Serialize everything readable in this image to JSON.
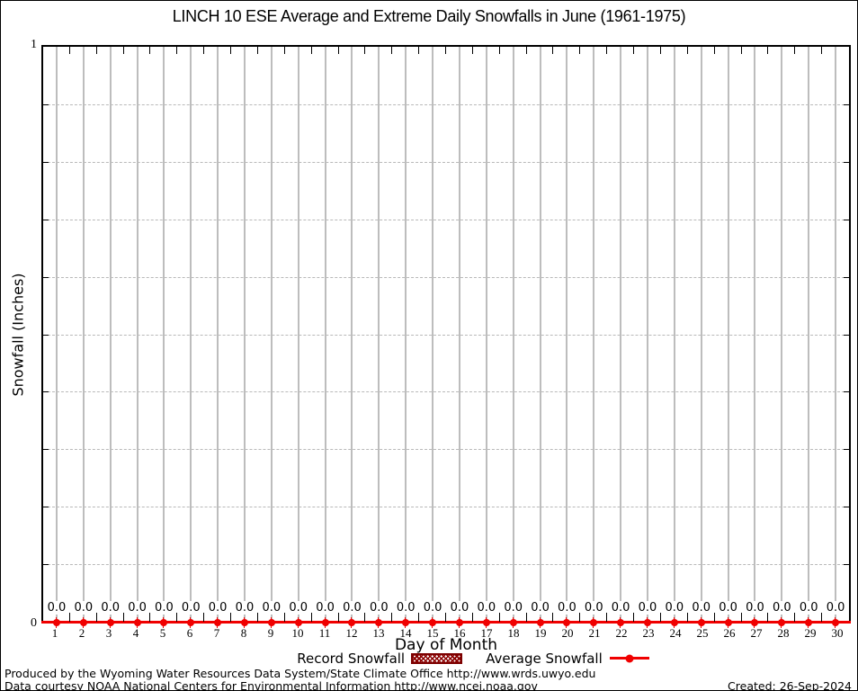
{
  "legend": {
    "record_label": "Record Snowfall",
    "average_label": "Average Snowfall",
    "position": "bottom"
  },
  "footer": {
    "line1": "Produced by the Wyoming Water Resources Data System/State Climate Office http://www.wrds.uwyo.edu",
    "line2": "Data courtesy NOAA National Centers for Environmental Information http://www.ncei.noaa.gov",
    "created": "Created: 26-Sep-2024"
  },
  "colors": {
    "average_line_red": "#f00000",
    "record_dark_red": "#8b0000",
    "vertical_grid_gray": "#bdbdbd",
    "dotted_grid_gray": "#b9b9b9",
    "border_black": "#000000"
  },
  "chart_data": {
    "type": "line",
    "title": "LINCH 10 ESE Average and Extreme Daily Snowfalls in June (1961-1975)",
    "xlabel": "Day of Month",
    "ylabel": "Snowfall (Inches)",
    "x": [
      1,
      2,
      3,
      4,
      5,
      6,
      7,
      8,
      9,
      10,
      11,
      12,
      13,
      14,
      15,
      16,
      17,
      18,
      19,
      20,
      21,
      22,
      23,
      24,
      25,
      26,
      27,
      28,
      29,
      30
    ],
    "x_tick_labels": [
      "1",
      "2",
      "3",
      "4",
      "5",
      "6",
      "7",
      "8",
      "9",
      "10",
      "11",
      "12",
      "13",
      "14",
      "15",
      "16",
      "17",
      "18",
      "19",
      "20",
      "21",
      "22",
      "23",
      "24",
      "25",
      "26",
      "27",
      "28",
      "29",
      "30"
    ],
    "y_tick_labels": [
      "0",
      "1"
    ],
    "series": [
      {
        "name": "Record Snowfall",
        "style": "bar-hatched",
        "values": [
          0.0,
          0.0,
          0.0,
          0.0,
          0.0,
          0.0,
          0.0,
          0.0,
          0.0,
          0.0,
          0.0,
          0.0,
          0.0,
          0.0,
          0.0,
          0.0,
          0.0,
          0.0,
          0.0,
          0.0,
          0.0,
          0.0,
          0.0,
          0.0,
          0.0,
          0.0,
          0.0,
          0.0,
          0.0,
          0.0
        ]
      },
      {
        "name": "Average Snowfall",
        "style": "line-with-points",
        "values": [
          0.0,
          0.0,
          0.0,
          0.0,
          0.0,
          0.0,
          0.0,
          0.0,
          0.0,
          0.0,
          0.0,
          0.0,
          0.0,
          0.0,
          0.0,
          0.0,
          0.0,
          0.0,
          0.0,
          0.0,
          0.0,
          0.0,
          0.0,
          0.0,
          0.0,
          0.0,
          0.0,
          0.0,
          0.0,
          0.0
        ]
      }
    ],
    "point_labels": [
      "0.0",
      "0.0",
      "0.0",
      "0.0",
      "0.0",
      "0.0",
      "0.0",
      "0.0",
      "0.0",
      "0.0",
      "0.0",
      "0.0",
      "0.0",
      "0.0",
      "0.0",
      "0.0",
      "0.0",
      "0.0",
      "0.0",
      "0.0",
      "0.0",
      "0.0",
      "0.0",
      "0.0",
      "0.0",
      "0.0",
      "0.0",
      "0.0",
      "0.0",
      "0.0"
    ],
    "ylim": [
      0,
      1
    ],
    "xlim": [
      0.5,
      30.5
    ],
    "y_gridline_step": 0.1,
    "grid": "on",
    "legend_position": "bottom"
  }
}
